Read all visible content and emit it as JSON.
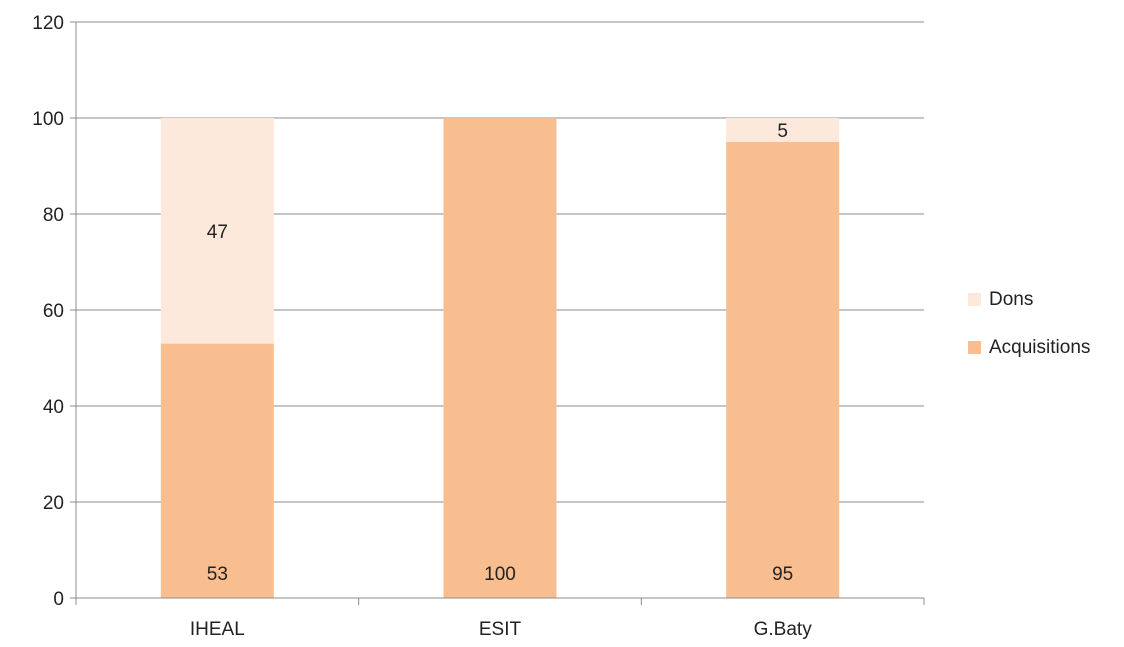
{
  "chart_data": {
    "type": "bar",
    "stacked": true,
    "categories": [
      "IHEAL",
      "ESIT",
      "G.Baty"
    ],
    "series": [
      {
        "name": "Acquisitions",
        "values": [
          53,
          100,
          95
        ],
        "color": "#f9be8f",
        "labels": [
          "53",
          "100",
          "95"
        ]
      },
      {
        "name": "Dons",
        "values": [
          47,
          0,
          5
        ],
        "color": "#fde9db",
        "labels": [
          "47",
          "",
          "5"
        ]
      }
    ],
    "ylim": [
      0,
      120
    ],
    "yticks": [
      "0",
      "20",
      "40",
      "60",
      "80",
      "100",
      "120"
    ],
    "grid": true,
    "legend": {
      "position": "right",
      "entries": [
        "Dons",
        "Acquisitions"
      ]
    },
    "title": "",
    "xlabel": "",
    "ylabel": ""
  }
}
